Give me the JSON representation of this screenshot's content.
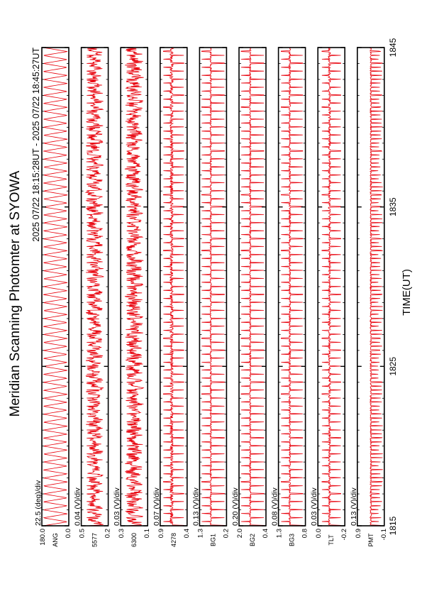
{
  "colors": {
    "trace": "#e8000b",
    "frame": "#000000",
    "background": "#ffffff"
  },
  "chart_data": {
    "type": "line",
    "orientation": "rotated 90 degrees counter-clockwise (time axis runs bottom to top)",
    "title": "Meridian Scanning Photomter at SYOWA",
    "subtitle": "2025 07/22 18:15:28UT - 2025 07/22 18:45:27UT",
    "xlabel": "TIME(UT)",
    "x_ticks": [
      "1815",
      "1825",
      "1835",
      "1845"
    ],
    "xlim": [
      "1815",
      "1845"
    ],
    "grid": false,
    "panels": [
      {
        "name": "ANG",
        "scale": "22.5 (deg)/div",
        "ytick_top": "180.0",
        "ytick_bottom": "0.0",
        "ylim": [
          0,
          180
        ],
        "pattern": "sawtooth",
        "period": 0.5,
        "amplitude": 0.45,
        "noise": 0.0
      },
      {
        "name": "5577",
        "scale": "0.04 (V)/div",
        "ytick_top": "0.5",
        "ytick_bottom": "0.2",
        "ylim": [
          0.2,
          0.5
        ],
        "pattern": "noisy",
        "period": 0.5,
        "amplitude": 0.3,
        "noise": 0.22
      },
      {
        "name": "6300",
        "scale": "0.03 (V)/div",
        "ytick_top": "0.3",
        "ytick_bottom": "0.1",
        "ylim": [
          0.1,
          0.3
        ],
        "pattern": "noisy",
        "period": 0.5,
        "amplitude": 0.28,
        "noise": 0.24
      },
      {
        "name": "4278",
        "scale": "0.07 (V)/div",
        "ytick_top": "0.9",
        "ytick_bottom": "0.4",
        "ylim": [
          0.4,
          0.9
        ],
        "pattern": "spiky",
        "period": 0.5,
        "amplitude": 0.38,
        "noise": 0.12
      },
      {
        "name": "BG1",
        "scale": "0.13 (V)/div",
        "ytick_top": "1.3",
        "ytick_bottom": "0.2",
        "ylim": [
          0.2,
          1.3
        ],
        "pattern": "spiky",
        "period": 0.5,
        "amplitude": 0.42,
        "noise": 0.05
      },
      {
        "name": "BG2",
        "scale": "0.20 (V)/div",
        "ytick_top": "2.0",
        "ytick_bottom": "0.4",
        "ylim": [
          0.4,
          2.0
        ],
        "pattern": "spiky",
        "period": 0.5,
        "amplitude": 0.42,
        "noise": 0.05
      },
      {
        "name": "BG3",
        "scale": "0.08 (V)/div",
        "ytick_top": "1.3",
        "ytick_bottom": "0.8",
        "ylim": [
          0.8,
          1.3
        ],
        "pattern": "spiky",
        "period": 0.5,
        "amplitude": 0.4,
        "noise": 0.06
      },
      {
        "name": "TLT",
        "scale": "0.03 (V)/div",
        "ytick_top": "0.0",
        "ytick_bottom": "-0.2",
        "ylim": [
          -0.2,
          0.0
        ],
        "pattern": "spiky",
        "period": 0.5,
        "amplitude": 0.35,
        "noise": 0.08
      },
      {
        "name": "PMT",
        "scale": "0.13 (V)/div",
        "ytick_top": "0.9",
        "ytick_bottom": "-0.1",
        "ylim": [
          -0.1,
          0.9
        ],
        "pattern": "comb",
        "period": 0.25,
        "amplitude": 0.45,
        "noise": 0.05
      }
    ]
  }
}
